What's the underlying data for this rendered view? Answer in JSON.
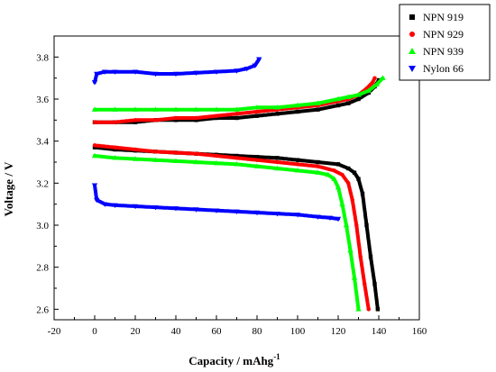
{
  "chart_data": {
    "type": "scatter",
    "title": "",
    "xlabel": "Capacity / mAhg",
    "xlabel_sup": "-1",
    "ylabel": "Voltage / V",
    "xlim": [
      -20,
      160
    ],
    "ylim": [
      2.55,
      3.9
    ],
    "x_ticks": [
      -20,
      0,
      20,
      40,
      60,
      80,
      100,
      120,
      140,
      160
    ],
    "y_ticks": [
      2.6,
      2.8,
      3.0,
      3.2,
      3.4,
      3.6,
      3.8
    ],
    "legend_position": "top-right",
    "series": [
      {
        "name": "NPN 919",
        "color": "#000000",
        "marker": "square",
        "charge": [
          [
            0,
            3.49
          ],
          [
            10,
            3.49
          ],
          [
            20,
            3.49
          ],
          [
            30,
            3.5
          ],
          [
            40,
            3.5
          ],
          [
            50,
            3.5
          ],
          [
            60,
            3.51
          ],
          [
            70,
            3.51
          ],
          [
            80,
            3.52
          ],
          [
            90,
            3.53
          ],
          [
            100,
            3.54
          ],
          [
            110,
            3.55
          ],
          [
            120,
            3.57
          ],
          [
            125,
            3.58
          ],
          [
            130,
            3.6
          ],
          [
            135,
            3.63
          ],
          [
            138,
            3.66
          ],
          [
            140,
            3.69
          ]
        ],
        "discharge": [
          [
            0,
            3.37
          ],
          [
            10,
            3.36
          ],
          [
            20,
            3.355
          ],
          [
            30,
            3.35
          ],
          [
            40,
            3.345
          ],
          [
            50,
            3.34
          ],
          [
            60,
            3.335
          ],
          [
            70,
            3.33
          ],
          [
            80,
            3.325
          ],
          [
            90,
            3.32
          ],
          [
            100,
            3.31
          ],
          [
            110,
            3.3
          ],
          [
            120,
            3.29
          ],
          [
            125,
            3.27
          ],
          [
            128,
            3.25
          ],
          [
            130,
            3.22
          ],
          [
            132,
            3.15
          ],
          [
            134,
            3.0
          ],
          [
            136,
            2.85
          ],
          [
            138,
            2.72
          ],
          [
            139.5,
            2.6
          ]
        ]
      },
      {
        "name": "NPN 929",
        "color": "#ff0000",
        "marker": "circle",
        "charge": [
          [
            0,
            3.49
          ],
          [
            10,
            3.49
          ],
          [
            20,
            3.5
          ],
          [
            30,
            3.5
          ],
          [
            40,
            3.51
          ],
          [
            50,
            3.51
          ],
          [
            60,
            3.52
          ],
          [
            70,
            3.53
          ],
          [
            80,
            3.54
          ],
          [
            90,
            3.55
          ],
          [
            100,
            3.56
          ],
          [
            110,
            3.57
          ],
          [
            120,
            3.59
          ],
          [
            125,
            3.6
          ],
          [
            130,
            3.62
          ],
          [
            134,
            3.65
          ],
          [
            137,
            3.68
          ],
          [
            138,
            3.7
          ]
        ],
        "discharge": [
          [
            0,
            3.38
          ],
          [
            10,
            3.37
          ],
          [
            20,
            3.36
          ],
          [
            30,
            3.35
          ],
          [
            40,
            3.345
          ],
          [
            50,
            3.34
          ],
          [
            60,
            3.33
          ],
          [
            70,
            3.32
          ],
          [
            80,
            3.31
          ],
          [
            90,
            3.3
          ],
          [
            100,
            3.29
          ],
          [
            110,
            3.28
          ],
          [
            118,
            3.26
          ],
          [
            122,
            3.24
          ],
          [
            125,
            3.2
          ],
          [
            127,
            3.12
          ],
          [
            129,
            3.0
          ],
          [
            131,
            2.85
          ],
          [
            133,
            2.72
          ],
          [
            135,
            2.6
          ]
        ]
      },
      {
        "name": "NPN 939",
        "color": "#00ff00",
        "marker": "triangle-up",
        "charge": [
          [
            0,
            3.55
          ],
          [
            10,
            3.55
          ],
          [
            20,
            3.55
          ],
          [
            30,
            3.55
          ],
          [
            40,
            3.55
          ],
          [
            50,
            3.55
          ],
          [
            60,
            3.55
          ],
          [
            70,
            3.55
          ],
          [
            80,
            3.56
          ],
          [
            90,
            3.56
          ],
          [
            100,
            3.57
          ],
          [
            110,
            3.58
          ],
          [
            120,
            3.6
          ],
          [
            125,
            3.61
          ],
          [
            130,
            3.62
          ],
          [
            135,
            3.64
          ],
          [
            139,
            3.67
          ],
          [
            142,
            3.7
          ]
        ],
        "discharge": [
          [
            0,
            3.33
          ],
          [
            10,
            3.32
          ],
          [
            20,
            3.315
          ],
          [
            30,
            3.31
          ],
          [
            40,
            3.305
          ],
          [
            50,
            3.3
          ],
          [
            60,
            3.295
          ],
          [
            70,
            3.29
          ],
          [
            80,
            3.28
          ],
          [
            90,
            3.27
          ],
          [
            100,
            3.26
          ],
          [
            110,
            3.25
          ],
          [
            115,
            3.24
          ],
          [
            118,
            3.22
          ],
          [
            120,
            3.18
          ],
          [
            122,
            3.1
          ],
          [
            124,
            3.0
          ],
          [
            126,
            2.88
          ],
          [
            128,
            2.75
          ],
          [
            130,
            2.6
          ]
        ]
      },
      {
        "name": "Nylon 66",
        "color": "#0000ff",
        "marker": "triangle-down",
        "charge": [
          [
            0,
            3.68
          ],
          [
            1,
            3.72
          ],
          [
            5,
            3.73
          ],
          [
            10,
            3.73
          ],
          [
            20,
            3.73
          ],
          [
            30,
            3.72
          ],
          [
            40,
            3.72
          ],
          [
            50,
            3.725
          ],
          [
            60,
            3.73
          ],
          [
            70,
            3.735
          ],
          [
            75,
            3.745
          ],
          [
            79,
            3.76
          ],
          [
            81,
            3.79
          ]
        ],
        "discharge": [
          [
            0,
            3.19
          ],
          [
            1,
            3.12
          ],
          [
            5,
            3.1
          ],
          [
            10,
            3.095
          ],
          [
            20,
            3.09
          ],
          [
            30,
            3.085
          ],
          [
            40,
            3.08
          ],
          [
            50,
            3.075
          ],
          [
            60,
            3.07
          ],
          [
            70,
            3.065
          ],
          [
            80,
            3.06
          ],
          [
            90,
            3.055
          ],
          [
            100,
            3.05
          ],
          [
            110,
            3.04
          ],
          [
            116,
            3.035
          ],
          [
            120,
            3.03
          ]
        ]
      }
    ]
  }
}
